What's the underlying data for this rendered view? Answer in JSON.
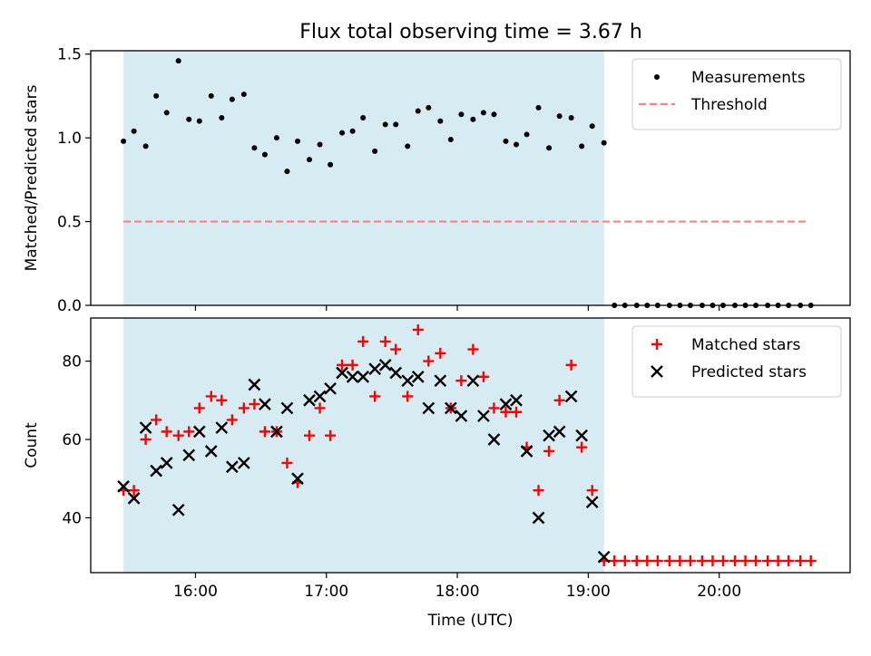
{
  "figure": {
    "title": "Flux total observing time = 3.67 h"
  },
  "chart_data": [
    {
      "type": "scatter",
      "ylabel": "Matched/Predicted stars",
      "xlabel": "",
      "ylim": [
        0,
        1.52
      ],
      "yticks": [
        0.0,
        0.5,
        1.0,
        1.5
      ],
      "ytick_labels": [
        "0.0",
        "0.5",
        "1.0",
        "1.5"
      ],
      "xlim": [
        15.2,
        21.0
      ],
      "xticks": [
        16,
        17,
        18,
        19,
        20
      ],
      "show_xtick_labels": false,
      "shaded_region": {
        "x0": 15.45,
        "x1": 19.12,
        "color": "#add8e6"
      },
      "legend_position": "upper right",
      "threshold": {
        "name": "Threshold",
        "y": 0.5,
        "x0": 15.45,
        "x1": 20.67,
        "color": "#ff7f7f"
      },
      "series": [
        {
          "name": "Measurements",
          "color": "#000000",
          "marker": "dot",
          "x": [
            15.45,
            15.53,
            15.62,
            15.7,
            15.78,
            15.87,
            15.95,
            16.03,
            16.12,
            16.2,
            16.28,
            16.37,
            16.45,
            16.53,
            16.62,
            16.7,
            16.78,
            16.87,
            16.95,
            17.03,
            17.12,
            17.2,
            17.28,
            17.37,
            17.45,
            17.53,
            17.62,
            17.7,
            17.78,
            17.87,
            17.95,
            18.03,
            18.12,
            18.2,
            18.28,
            18.37,
            18.45,
            18.53,
            18.62,
            18.7,
            18.78,
            18.87,
            18.95,
            19.03,
            19.12,
            19.2,
            19.28,
            19.37,
            19.45,
            19.53,
            19.62,
            19.7,
            19.78,
            19.87,
            19.95,
            20.03,
            20.12,
            20.2,
            20.28,
            20.37,
            20.45,
            20.53,
            20.62,
            20.7
          ],
          "y": [
            0.98,
            1.04,
            0.95,
            1.25,
            1.15,
            1.46,
            1.11,
            1.1,
            1.25,
            1.12,
            1.23,
            1.26,
            0.94,
            0.9,
            1.0,
            0.8,
            0.98,
            0.87,
            0.96,
            0.84,
            1.03,
            1.04,
            1.12,
            0.92,
            1.08,
            1.08,
            0.95,
            1.16,
            1.18,
            1.1,
            0.99,
            1.14,
            1.11,
            1.15,
            1.14,
            0.98,
            0.96,
            1.02,
            1.18,
            0.94,
            1.13,
            1.12,
            0.95,
            1.07,
            0.97,
            0,
            0,
            0,
            0,
            0,
            0,
            0,
            0,
            0,
            0,
            0,
            0,
            0,
            0,
            0,
            0,
            0,
            0,
            0
          ]
        }
      ]
    },
    {
      "type": "scatter",
      "ylabel": "Count",
      "xlabel": "Time (UTC)",
      "ylim": [
        26,
        91
      ],
      "yticks": [
        40,
        60,
        80
      ],
      "ytick_labels": [
        "40",
        "60",
        "80"
      ],
      "xlim": [
        15.2,
        21.0
      ],
      "xticks": [
        16,
        17,
        18,
        19,
        20
      ],
      "xtick_labels": [
        "16:00",
        "17:00",
        "18:00",
        "19:00",
        "20:00"
      ],
      "shaded_region": {
        "x0": 15.45,
        "x1": 19.12,
        "color": "#add8e6"
      },
      "legend_position": "upper right",
      "series": [
        {
          "name": "Matched stars",
          "color": "#ff0000",
          "marker": "plus",
          "x": [
            15.45,
            15.53,
            15.62,
            15.7,
            15.78,
            15.87,
            15.95,
            16.03,
            16.12,
            16.2,
            16.28,
            16.37,
            16.45,
            16.53,
            16.62,
            16.7,
            16.78,
            16.87,
            16.95,
            17.03,
            17.12,
            17.2,
            17.28,
            17.37,
            17.45,
            17.53,
            17.62,
            17.7,
            17.78,
            17.87,
            17.95,
            18.03,
            18.12,
            18.2,
            18.28,
            18.37,
            18.45,
            18.53,
            18.62,
            18.7,
            18.78,
            18.87,
            18.95,
            19.03,
            19.12,
            19.2,
            19.28,
            19.37,
            19.45,
            19.53,
            19.62,
            19.7,
            19.78,
            19.87,
            19.95,
            20.03,
            20.12,
            20.2,
            20.28,
            20.37,
            20.45,
            20.53,
            20.62,
            20.7
          ],
          "y": [
            47,
            47,
            60,
            65,
            62,
            61,
            62,
            68,
            71,
            70,
            65,
            68,
            69,
            62,
            62,
            54,
            49,
            61,
            68,
            61,
            79,
            79,
            85,
            71,
            85,
            83,
            71,
            88,
            80,
            82,
            68,
            75,
            83,
            76,
            68,
            67,
            67,
            58,
            47,
            57,
            70,
            79,
            58,
            47,
            29,
            29,
            29,
            29,
            29,
            29,
            29,
            29,
            29,
            29,
            29,
            29,
            29,
            29,
            29,
            29,
            29,
            29,
            29,
            29
          ]
        },
        {
          "name": "Predicted stars",
          "color": "#000000",
          "marker": "x",
          "x": [
            15.45,
            15.53,
            15.62,
            15.7,
            15.78,
            15.87,
            15.95,
            16.03,
            16.12,
            16.2,
            16.28,
            16.37,
            16.45,
            16.53,
            16.62,
            16.7,
            16.78,
            16.87,
            16.95,
            17.03,
            17.12,
            17.2,
            17.28,
            17.37,
            17.45,
            17.53,
            17.62,
            17.7,
            17.78,
            17.87,
            17.95,
            18.03,
            18.12,
            18.2,
            18.28,
            18.37,
            18.45,
            18.53,
            18.62,
            18.7,
            18.78,
            18.87,
            18.95,
            19.03,
            19.12
          ],
          "y": [
            48,
            45,
            63,
            52,
            54,
            42,
            56,
            62,
            57,
            63,
            53,
            54,
            74,
            69,
            62,
            68,
            50,
            70,
            71,
            73,
            77,
            76,
            76,
            78,
            79,
            77,
            75,
            76,
            68,
            75,
            68,
            66,
            75,
            66,
            60,
            69,
            70,
            57,
            40,
            61,
            62,
            71,
            61,
            44,
            30
          ]
        }
      ]
    }
  ]
}
